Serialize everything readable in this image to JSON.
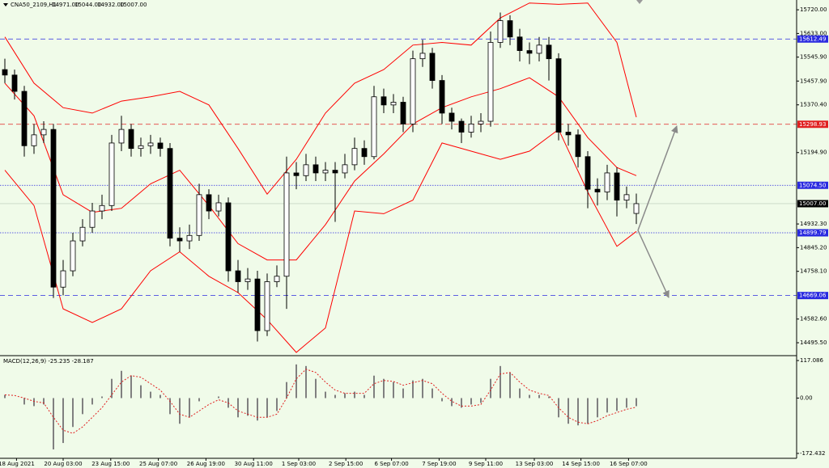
{
  "chart_data": {
    "type": "candlestick",
    "title": "CNA50_2109,H1",
    "title_values": [
      "14971.00",
      "15044.00",
      "14932.00",
      "15007.00"
    ],
    "xlim": [
      -0.5,
      81.5
    ],
    "xticks": [
      {
        "value": 1.2,
        "label": "18 Aug 2021"
      },
      {
        "value": 6,
        "label": "20 Aug 03:00"
      },
      {
        "value": 10.9,
        "label": "23 Aug 15:00"
      },
      {
        "value": 15.8,
        "label": "25 Aug 07:00"
      },
      {
        "value": 20.7,
        "label": "26 Aug 19:00"
      },
      {
        "value": 25.6,
        "label": "30 Aug 11:00"
      },
      {
        "value": 30.25,
        "label": "1 Sep 03:00"
      },
      {
        "value": 35.1,
        "label": "2 Sep 15:00"
      },
      {
        "value": 39.8,
        "label": "6 Sep 07:00"
      },
      {
        "value": 44.7,
        "label": "7 Sep 19:00"
      },
      {
        "value": 49.5,
        "label": "9 Sep 11:00"
      },
      {
        "value": 54.5,
        "label": "13 Sep 03:00"
      },
      {
        "value": 59.3,
        "label": "14 Sep 15:00"
      },
      {
        "value": 64.2,
        "label": "16 Sep 07:00"
      }
    ],
    "ylim": [
      14448,
      15756
    ],
    "yticks": [
      {
        "value": 15720,
        "label": "15720.00"
      },
      {
        "value": 15633,
        "label": "15633.00"
      },
      {
        "value": 15545.9,
        "label": "15545.90"
      },
      {
        "value": 15457.9,
        "label": "15457.90"
      },
      {
        "value": 15370.4,
        "label": "15370.40"
      },
      {
        "value": 15194.9,
        "label": "15194.90"
      },
      {
        "value": 14932.3,
        "label": "14932.30"
      },
      {
        "value": 14845.2,
        "label": "14845.20"
      },
      {
        "value": 14758.1,
        "label": "14758.10"
      },
      {
        "value": 14582.6,
        "label": "14582.60"
      },
      {
        "value": 14495.5,
        "label": "14495.50"
      }
    ],
    "open": [
      15500,
      15480,
      15420,
      15220,
      15260,
      15280,
      14700,
      14760,
      14870,
      14920,
      14980,
      15000,
      15230,
      15280,
      15210,
      15220,
      15230,
      15210,
      14880,
      14870,
      14890,
      15040,
      14980,
      15010,
      14760,
      14720,
      14730,
      14540,
      14720,
      14740,
      15120,
      15110,
      15150,
      15120,
      15130,
      15120,
      15150,
      15210,
      15180,
      15400,
      15370,
      15380,
      15300,
      15540,
      15560,
      15460,
      15340,
      15310,
      15270,
      15300,
      15310,
      15600,
      15680,
      15620,
      15570,
      15560,
      15590,
      15540,
      15270,
      15260,
      15180,
      15060,
      15050,
      15120,
      15020,
      14971
    ],
    "high": [
      15540,
      15500,
      15440,
      15300,
      15310,
      15300,
      14800,
      14900,
      14950,
      15010,
      15040,
      15260,
      15330,
      15300,
      15250,
      15260,
      15250,
      15230,
      14920,
      14930,
      15080,
      15060,
      15040,
      15030,
      14800,
      14770,
      14760,
      14750,
      14780,
      15180,
      15160,
      15190,
      15180,
      15160,
      15160,
      15190,
      15250,
      15240,
      15440,
      15430,
      15410,
      15400,
      15570,
      15610,
      15580,
      15480,
      15360,
      15320,
      15330,
      15340,
      15640,
      15710,
      15700,
      15650,
      15600,
      15620,
      15620,
      15560,
      15300,
      15280,
      15200,
      15100,
      15150,
      15140,
      15070,
      15044
    ],
    "low": [
      15450,
      15390,
      15180,
      15190,
      15230,
      14660,
      14670,
      14740,
      14850,
      14900,
      14950,
      14980,
      15200,
      15180,
      15180,
      15190,
      15180,
      14850,
      14830,
      14840,
      14870,
      14950,
      14960,
      14720,
      14680,
      14690,
      14500,
      14520,
      14700,
      14620,
      15060,
      15090,
      15090,
      15090,
      14940,
      15100,
      15130,
      15150,
      15170,
      15340,
      15340,
      15270,
      15270,
      15510,
      15430,
      15300,
      15280,
      15230,
      15250,
      15270,
      15290,
      15580,
      15590,
      15530,
      15520,
      15530,
      15460,
      15240,
      15220,
      15140,
      14990,
      15000,
      15020,
      14960,
      14990,
      14932
    ],
    "close": [
      15480,
      15420,
      15220,
      15260,
      15280,
      14700,
      14760,
      14870,
      14920,
      14980,
      15000,
      15230,
      15280,
      15210,
      15220,
      15230,
      15210,
      14880,
      14870,
      14890,
      15040,
      14980,
      15010,
      14760,
      14720,
      14730,
      14540,
      14720,
      14740,
      15120,
      15110,
      15150,
      15120,
      15130,
      15120,
      15150,
      15210,
      15180,
      15400,
      15370,
      15380,
      15300,
      15540,
      15560,
      15460,
      15340,
      15310,
      15270,
      15300,
      15310,
      15600,
      15680,
      15620,
      15570,
      15560,
      15590,
      15540,
      15270,
      15260,
      15180,
      15060,
      15050,
      15120,
      15020,
      15040,
      15007
    ],
    "bands": {
      "color": "#ff0000",
      "x": [
        0,
        3,
        6,
        9,
        12,
        15,
        18,
        21,
        24,
        27,
        30,
        33,
        36,
        39,
        42,
        45,
        48,
        51,
        54,
        57,
        60,
        63,
        65
      ],
      "upper": [
        15620,
        15450,
        15360,
        15340,
        15384,
        15400,
        15420,
        15370,
        15210,
        15042,
        15170,
        15340,
        15450,
        15500,
        15590,
        15600,
        15590,
        15690,
        15745,
        15740,
        15745,
        15600,
        15325
      ],
      "middle": [
        15450,
        15330,
        15040,
        14975,
        14990,
        15080,
        15130,
        15000,
        14860,
        14800,
        14800,
        14930,
        15090,
        15190,
        15300,
        15360,
        15400,
        15430,
        15470,
        15400,
        15250,
        15140,
        15110
      ],
      "lower": [
        15130,
        15000,
        14620,
        14570,
        14620,
        14760,
        14830,
        14740,
        14680,
        14580,
        14460,
        14550,
        14980,
        14970,
        15020,
        15230,
        15200,
        15170,
        15200,
        15280,
        15050,
        14850,
        14905
      ]
    },
    "levels": [
      {
        "value": 15612.49,
        "color": "#2a2ae0",
        "style": "dashed"
      },
      {
        "value": 15298.93,
        "color": "#e02020",
        "style": "dashed"
      },
      {
        "value": 15074.5,
        "label": "15074.50",
        "color": "#2a2ae0",
        "style": "dotted"
      },
      {
        "value": 15007,
        "label": "15007.00",
        "color": "#000000",
        "style": "none"
      },
      {
        "value": 14899.79,
        "color": "#2a2ae0",
        "style": "dotted"
      },
      {
        "value": 14669.06,
        "color": "#2a2ae0",
        "style": "dashed"
      }
    ],
    "macd": {
      "title": "MACD(12,26,9) -25.235 -28.187",
      "ylim": [
        -187.7,
        129.8
      ],
      "yticks": [
        117.086,
        {
          "value": 0,
          "label": "0.00"
        },
        -172.432
      ],
      "histogram": [
        10,
        0,
        -20,
        -25,
        -20,
        -160,
        -140,
        -90,
        -50,
        -20,
        5,
        60,
        85,
        70,
        40,
        20,
        10,
        -50,
        -80,
        -60,
        -10,
        0,
        5,
        -30,
        -60,
        -55,
        -70,
        -60,
        -40,
        50,
        105,
        100,
        60,
        20,
        10,
        15,
        20,
        10,
        70,
        60,
        50,
        30,
        55,
        60,
        30,
        -10,
        -25,
        -30,
        -20,
        -15,
        60,
        100,
        80,
        30,
        10,
        10,
        5,
        -60,
        -80,
        -85,
        -80,
        -60,
        -45,
        -40,
        -30,
        -25.235
      ],
      "signal": [
        10,
        8,
        0,
        -10,
        -15,
        -60,
        -100,
        -110,
        -90,
        -60,
        -30,
        10,
        50,
        70,
        65,
        45,
        25,
        -10,
        -50,
        -60,
        -40,
        -20,
        -5,
        -15,
        -40,
        -50,
        -60,
        -60,
        -50,
        0,
        60,
        90,
        80,
        50,
        25,
        15,
        15,
        15,
        45,
        55,
        52,
        40,
        48,
        55,
        45,
        15,
        -10,
        -25,
        -25,
        -20,
        25,
        75,
        80,
        50,
        25,
        15,
        8,
        -30,
        -60,
        -75,
        -80,
        -70,
        -55,
        -45,
        -35,
        -28.187
      ],
      "histogram_color": "#808080",
      "signal_color": "#e02020"
    }
  }
}
